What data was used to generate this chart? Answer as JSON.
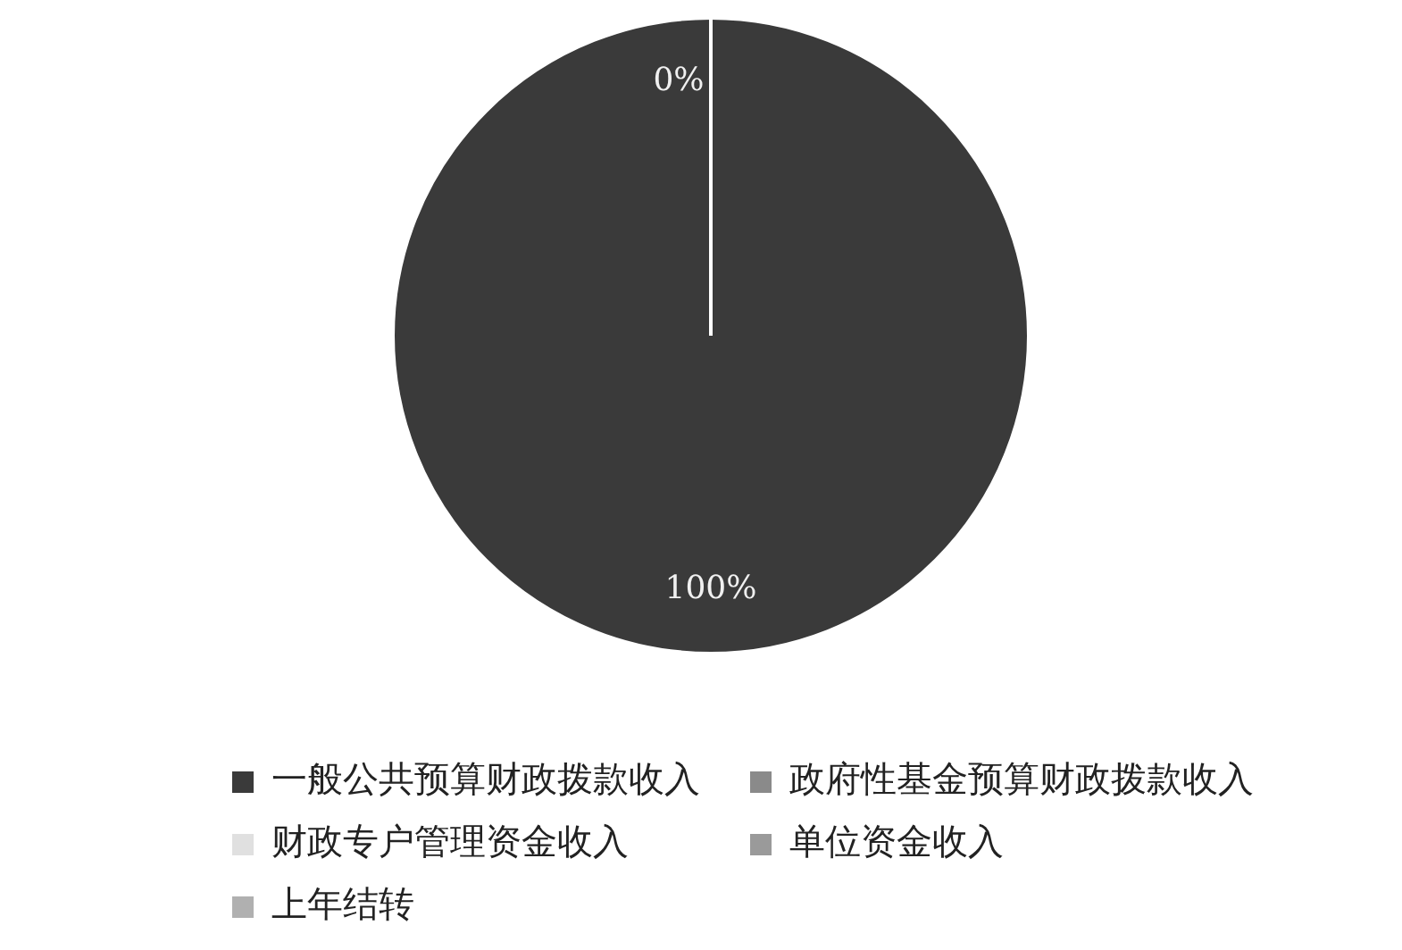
{
  "chart_data": {
    "type": "pie",
    "categories": [
      "一般公共预算财政拨款收入",
      "政府性基金预算财政拨款收入",
      "财政专户管理资金收入",
      "单位资金收入",
      "上年结转"
    ],
    "values": [
      100,
      0,
      0,
      0,
      0
    ],
    "colors": [
      "#3a3a3a",
      "#8a8a8a",
      "#e0e0e0",
      "#9a9a9a",
      "#b0b0b0"
    ],
    "value_labels": [
      "100%",
      "0%",
      null,
      null,
      null
    ],
    "legend": "bottom"
  }
}
